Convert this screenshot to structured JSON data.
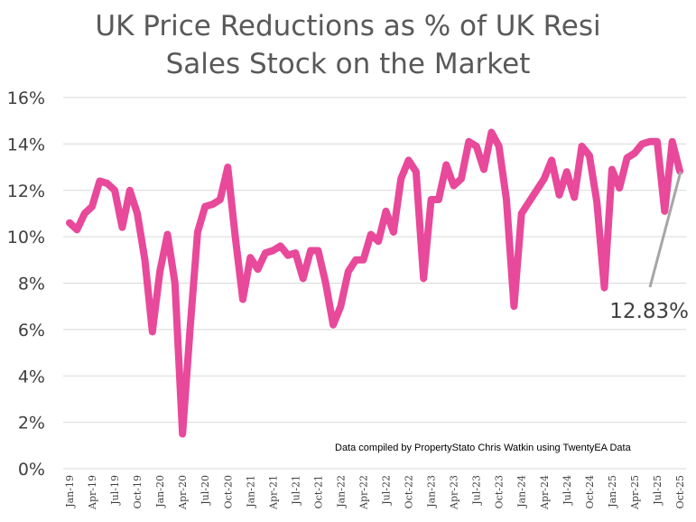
{
  "chart_data": {
    "type": "line",
    "title": [
      "UK Price Reductions as % of UK Resi",
      "Sales Stock on the Market"
    ],
    "xlabel": "",
    "ylabel": "",
    "ylim": [
      0,
      16
    ],
    "y_ticks": [
      "0%",
      "2%",
      "4%",
      "6%",
      "8%",
      "10%",
      "12%",
      "14%",
      "16%"
    ],
    "grid": "horizontal",
    "x_ticks": [
      "Jan-19",
      "Apr-19",
      "Jul-19",
      "Oct-19",
      "Jan-20",
      "Apr-20",
      "Jul-20",
      "Oct-20",
      "Jan-21",
      "Apr-21",
      "Jul-21",
      "Oct-21",
      "Jan-22",
      "Apr-22",
      "Jul-22",
      "Oct-22",
      "Jan-23",
      "Apr-23",
      "Jul-23",
      "Oct-23",
      "Jan-24",
      "Apr-24",
      "Jul-24",
      "Oct-24",
      "Jan-25",
      "Apr-25",
      "Jul-25",
      "Oct-25"
    ],
    "series": [
      {
        "color": "#e8499a",
        "values": [
          10.6,
          10.3,
          11.0,
          11.3,
          12.4,
          12.3,
          12.0,
          10.4,
          12.0,
          11.0,
          9.0,
          5.9,
          8.5,
          10.1,
          8.0,
          1.5,
          6.0,
          10.2,
          11.3,
          11.4,
          11.6,
          13.0,
          10.0,
          7.3,
          9.1,
          8.6,
          9.3,
          9.4,
          9.6,
          9.2,
          9.3,
          8.2,
          9.4,
          9.4,
          8.0,
          6.2,
          7.0,
          8.5,
          9.0,
          9.0,
          10.1,
          9.8,
          11.1,
          10.2,
          12.5,
          13.3,
          12.8,
          8.2,
          11.6,
          11.6,
          13.1,
          12.2,
          12.5,
          14.1,
          13.9,
          12.9,
          14.5,
          13.9,
          11.6,
          7.0,
          11.0,
          11.5,
          12.0,
          12.5,
          13.3,
          11.8,
          12.8,
          11.7,
          13.9,
          13.5,
          11.5,
          7.8,
          12.9,
          12.1,
          13.4,
          13.6,
          14.0,
          14.1,
          14.1,
          11.1,
          14.1,
          12.83
        ]
      }
    ],
    "annotation": "12.83%",
    "credit": "Data compiled by PropertyStato Chris Watkin using TwentyEA Data"
  }
}
